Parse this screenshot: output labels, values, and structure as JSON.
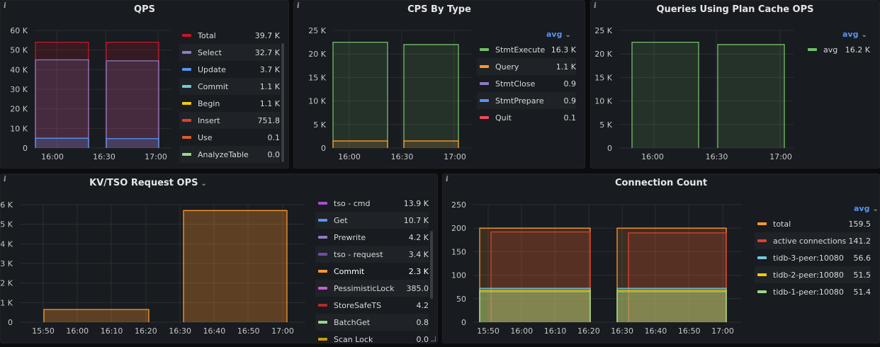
{
  "colors": {
    "bg": "#0b0c0e",
    "panel": "#181b1f",
    "grid": "#2c2e32",
    "text": "#c7c8ca",
    "accent": "#5794f2"
  },
  "panels": {
    "qps": {
      "title": "QPS",
      "legend": [
        {
          "name": "Total",
          "value": "39.7 K",
          "color": "#c4162a"
        },
        {
          "name": "Select",
          "value": "32.7 K",
          "color": "#8f7cc3"
        },
        {
          "name": "Update",
          "value": "3.7 K",
          "color": "#5794f2"
        },
        {
          "name": "Commit",
          "value": "1.1 K",
          "color": "#73c9d9"
        },
        {
          "name": "Begin",
          "value": "1.1 K",
          "color": "#f2cc0c"
        },
        {
          "name": "Insert",
          "value": "751.8",
          "color": "#e0402f"
        },
        {
          "name": "Use",
          "value": "0.1",
          "color": "#d65f25"
        },
        {
          "name": "AnalyzeTable",
          "value": "0.0",
          "color": "#96d98d"
        }
      ],
      "chart_data": {
        "type": "area",
        "ylim": [
          0,
          60000
        ],
        "yticks": [
          "0",
          "10 K",
          "20 K",
          "30 K",
          "40 K",
          "50 K",
          "60 K"
        ],
        "xticks": [
          "16:00",
          "16:30",
          "17:00"
        ],
        "series": [
          {
            "name": "Total",
            "values": [
              54000,
              54000
            ],
            "color": "#c4162a"
          },
          {
            "name": "Select",
            "values": [
              45000,
              44500
            ],
            "color": "#8f7cc3"
          },
          {
            "name": "Update",
            "values": [
              5000,
              4800
            ],
            "color": "#5794f2"
          }
        ]
      }
    },
    "cps": {
      "title": "CPS By Type",
      "avg_label": "avg",
      "legend": [
        {
          "name": "StmtExecute",
          "value": "16.3 K",
          "color": "#73bf69"
        },
        {
          "name": "Query",
          "value": "1.1 K",
          "color": "#ff9830"
        },
        {
          "name": "StmtClose",
          "value": "0.9",
          "color": "#8f7cc3"
        },
        {
          "name": "StmtPrepare",
          "value": "0.9",
          "color": "#5794f2"
        },
        {
          "name": "Quit",
          "value": "0.1",
          "color": "#f2495c"
        }
      ],
      "chart_data": {
        "type": "area",
        "ylim": [
          0,
          25000
        ],
        "yticks": [
          "0",
          "5 K",
          "10 K",
          "15 K",
          "20 K",
          "25 K"
        ],
        "xticks": [
          "16:00",
          "16:30",
          "17:00"
        ],
        "series": [
          {
            "name": "StmtExecute",
            "values": [
              22500,
              22000
            ],
            "color": "#73bf69"
          },
          {
            "name": "Query",
            "values": [
              1500,
              1500
            ],
            "color": "#ff9830"
          }
        ]
      }
    },
    "plan_cache": {
      "title": "Queries Using Plan Cache OPS",
      "avg_label": "avg",
      "legend": [
        {
          "name": "avg",
          "value": "16.2 K",
          "color": "#73bf69"
        }
      ],
      "chart_data": {
        "type": "area",
        "ylim": [
          0,
          25000
        ],
        "yticks": [
          "0",
          "5 K",
          "10 K",
          "15 K",
          "20 K",
          "25 K"
        ],
        "xticks": [
          "16:00",
          "16:30",
          "17:00"
        ],
        "series": [
          {
            "name": "avg",
            "values": [
              22500,
              22000
            ],
            "color": "#73bf69"
          }
        ]
      }
    },
    "kv": {
      "title": "KV/TSO Request OPS",
      "legend": [
        {
          "name": "tso - cmd",
          "value": "13.9 K",
          "color": "#a352cc"
        },
        {
          "name": "Get",
          "value": "10.7 K",
          "color": "#5794f2"
        },
        {
          "name": "Prewrite",
          "value": "4.2 K",
          "color": "#8f7cc3"
        },
        {
          "name": "tso - request",
          "value": "3.4 K",
          "color": "#6e4f9c"
        },
        {
          "name": "Commit",
          "value": "2.3 K",
          "color": "#ff9830"
        },
        {
          "name": "PessimisticLock",
          "value": "385.0",
          "color": "#ca5cd5"
        },
        {
          "name": "StoreSafeTS",
          "value": "4.2",
          "color": "#b02b2b"
        },
        {
          "name": "BatchGet",
          "value": "0.8",
          "color": "#96d98d"
        },
        {
          "name": "Scan Lock",
          "value": "0.0",
          "color": "#c4a000"
        }
      ],
      "chart_data": {
        "type": "area",
        "ylim": [
          0,
          6000
        ],
        "yticks": [
          "0",
          "1 K",
          "2 K",
          "3 K",
          "4 K",
          "5 K",
          "6 K"
        ],
        "xticks": [
          "15:50",
          "16:00",
          "16:10",
          "16:20",
          "16:30",
          "16:40",
          "16:50",
          "17:00"
        ],
        "series": [
          {
            "name": "Commit",
            "values": [
              650,
              5700
            ],
            "color": "#ff9830"
          }
        ]
      }
    },
    "conn": {
      "title": "Connection Count",
      "avg_label": "avg",
      "legend": [
        {
          "name": "total",
          "value": "159.5",
          "color": "#ff9830"
        },
        {
          "name": "active connections",
          "value": "141.2",
          "color": "#e0402f"
        },
        {
          "name": "tidb-3-peer:10080",
          "value": "56.6",
          "color": "#73c9d9"
        },
        {
          "name": "tidb-2-peer:10080",
          "value": "51.5",
          "color": "#f2cc0c"
        },
        {
          "name": "tidb-1-peer:10080",
          "value": "51.4",
          "color": "#96d98d"
        }
      ],
      "chart_data": {
        "type": "area",
        "ylim": [
          0,
          250
        ],
        "yticks": [
          "0",
          "50",
          "100",
          "150",
          "200",
          "250"
        ],
        "xticks": [
          "15:50",
          "16:00",
          "16:10",
          "16:20",
          "16:30",
          "16:40",
          "16:50",
          "17:00"
        ],
        "series": [
          {
            "name": "total",
            "values": [
              200,
              200
            ],
            "color": "#ff9830"
          },
          {
            "name": "active connections",
            "values": [
              192,
              190
            ],
            "color": "#e0402f"
          },
          {
            "name": "tidb-3-peer:10080",
            "values": [
              72,
              72
            ],
            "color": "#73c9d9"
          },
          {
            "name": "tidb-2-peer:10080",
            "values": [
              68,
              68
            ],
            "color": "#f2cc0c"
          },
          {
            "name": "tidb-1-peer:10080",
            "values": [
              65,
              65
            ],
            "color": "#96d98d"
          }
        ]
      }
    }
  }
}
